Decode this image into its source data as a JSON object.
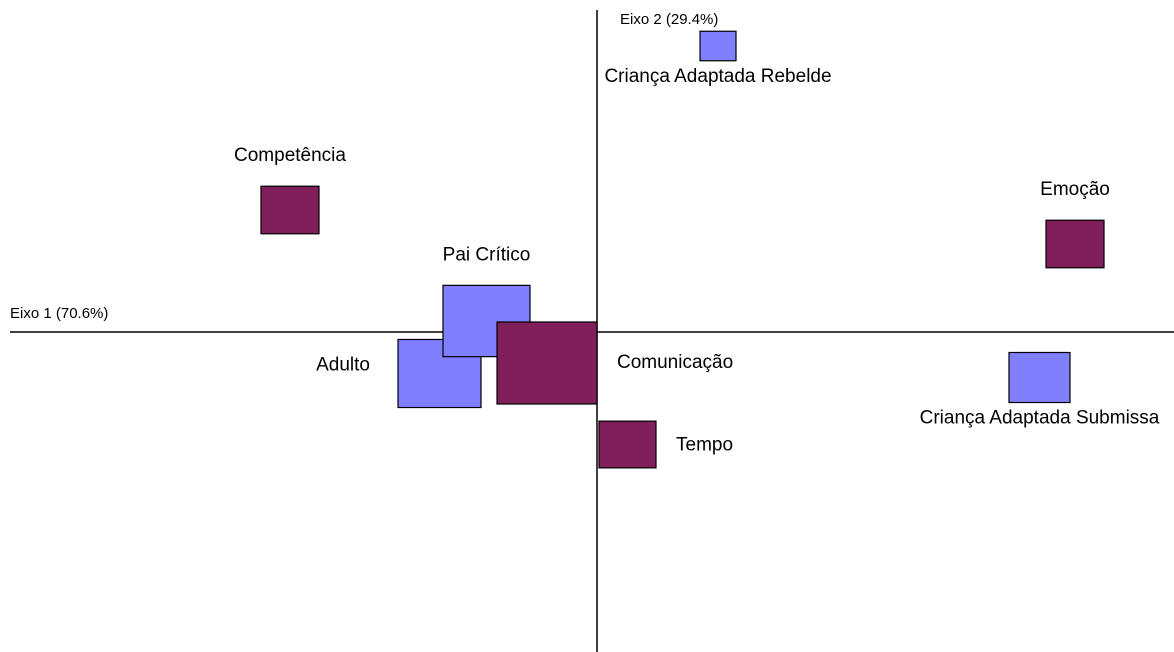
{
  "chart_data": {
    "type": "scatter",
    "xlabel": "Eixo 1 (70.6%)",
    "ylabel": "Eixo 2 (29.4%)",
    "xlim": [
      -5.87,
      5.77
    ],
    "ylim": [
      -3.2,
      3.22
    ],
    "points": [
      {
        "label": "Adulto",
        "x": -1.575,
        "y": -0.415,
        "size": 0.83,
        "color": "#8080ff",
        "label_position": "left"
      },
      {
        "label": "Pai Crítico",
        "x": -1.105,
        "y": 0.11,
        "size": 0.87,
        "color": "#8080ff",
        "label_position": "top"
      },
      {
        "label": "Comunicação",
        "x": -0.5,
        "y": -0.31,
        "size": 1.0,
        "color": "#801f5a",
        "label_position": "right"
      },
      {
        "label": "Criança Adaptada Rebelde",
        "x": 1.21,
        "y": 2.86,
        "size": 0.36,
        "color": "#8080ff",
        "label_position": "bottom"
      },
      {
        "label": "Competência",
        "x": -3.07,
        "y": 1.22,
        "size": 0.58,
        "color": "#801f5a",
        "label_position": "top"
      },
      {
        "label": "Emoção",
        "x": 4.78,
        "y": 0.88,
        "size": 0.58,
        "color": "#801f5a",
        "label_position": "top"
      },
      {
        "label": "Tempo",
        "x": 0.305,
        "y": -1.125,
        "size": 0.57,
        "color": "#801f5a",
        "label_position": "right"
      },
      {
        "label": "Criança Adaptada Submissa",
        "x": 4.425,
        "y": -0.455,
        "size": 0.61,
        "color": "#8080ff",
        "label_position": "bottom"
      }
    ]
  }
}
